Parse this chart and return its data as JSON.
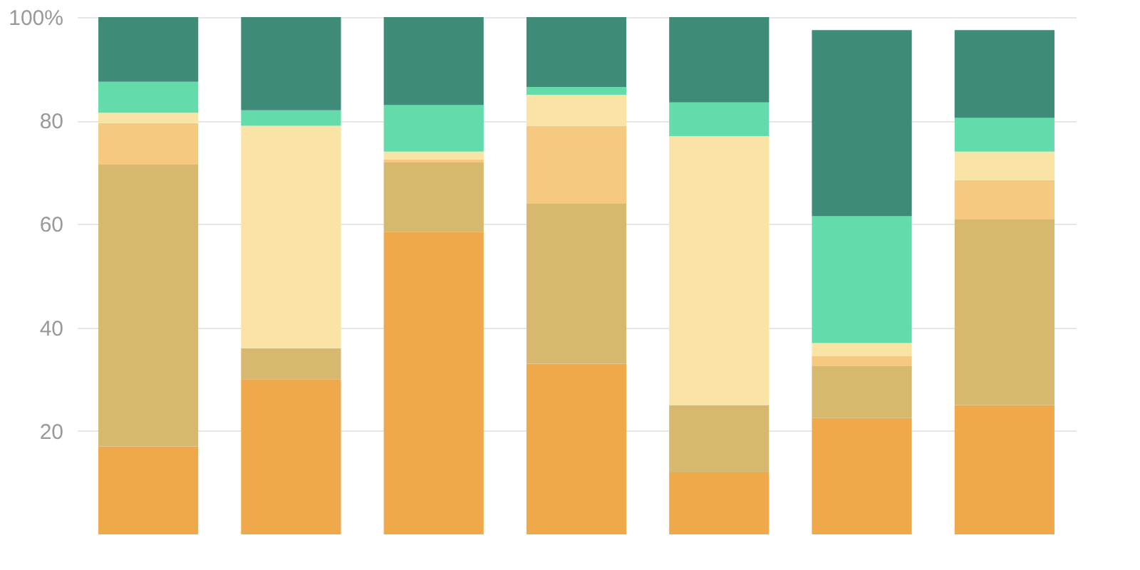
{
  "chart_data": {
    "type": "bar",
    "stacked": true,
    "relative": false,
    "categories": [
      null,
      null,
      null,
      null,
      null,
      null,
      null
    ],
    "series": [
      {
        "color": "#f0a94a",
        "values": [
          17,
          30,
          58.5,
          33,
          12,
          22.5,
          25
        ]
      },
      {
        "color": "#d6b86e",
        "values": [
          54.5,
          6,
          13.5,
          31,
          13,
          10,
          36
        ]
      },
      {
        "color": "#f5c97f",
        "values": [
          8,
          0,
          0.5,
          15,
          0,
          2,
          7.5
        ]
      },
      {
        "color": "#f9e4a5",
        "values": [
          2,
          43,
          1.5,
          6,
          52,
          2.5,
          5.5
        ]
      },
      {
        "color": "#64dbab",
        "values": [
          6,
          3,
          9,
          1.5,
          6.5,
          24.5,
          6.5
        ]
      },
      {
        "color": "#3e8c77",
        "values": [
          12.5,
          18,
          17,
          13.5,
          16.5,
          36,
          17
        ]
      }
    ],
    "ylim": [
      0,
      100
    ],
    "yticks": [
      20,
      40,
      60,
      80,
      {
        "value": 100,
        "label": "100%"
      }
    ],
    "grid": "y",
    "legend": false,
    "tick_labels": "y"
  }
}
